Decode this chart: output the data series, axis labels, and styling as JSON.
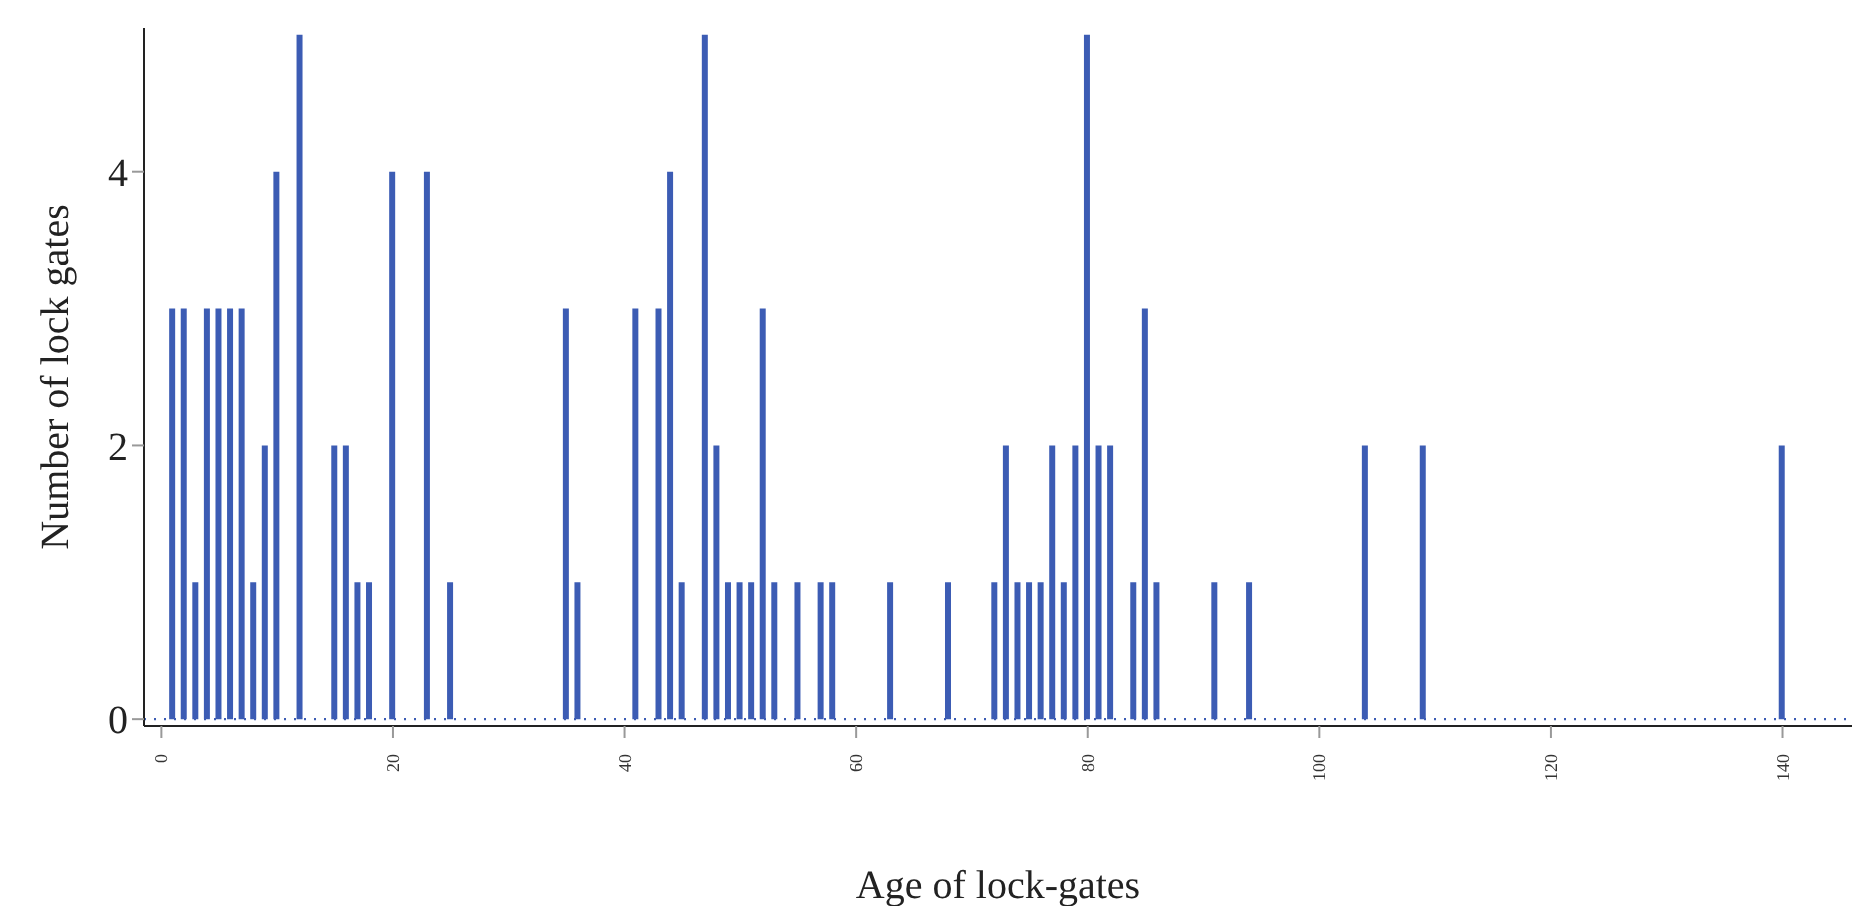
{
  "chart_data": {
    "type": "bar",
    "xlabel": "Age of lock-gates",
    "ylabel": "Number of lock gates",
    "x": [
      1,
      2,
      3,
      4,
      5,
      6,
      7,
      8,
      9,
      10,
      12,
      15,
      16,
      17,
      18,
      20,
      23,
      25,
      35,
      36,
      41,
      43,
      44,
      45,
      47,
      48,
      49,
      50,
      51,
      52,
      53,
      55,
      57,
      58,
      63,
      68,
      72,
      73,
      74,
      75,
      76,
      77,
      78,
      79,
      80,
      81,
      82,
      84,
      85,
      86,
      91,
      94,
      104,
      109,
      140
    ],
    "values": [
      3,
      3,
      1,
      3,
      3,
      3,
      3,
      1,
      2,
      4,
      5,
      2,
      2,
      1,
      1,
      4,
      4,
      1,
      3,
      1,
      3,
      3,
      4,
      1,
      5,
      2,
      1,
      1,
      1,
      3,
      1,
      1,
      1,
      1,
      1,
      1,
      1,
      2,
      1,
      1,
      1,
      2,
      1,
      2,
      5,
      2,
      2,
      1,
      3,
      1,
      1,
      1,
      2,
      2,
      2
    ],
    "color": "#3c5cb4",
    "xlim": [
      -1.5,
      146
    ],
    "xticks": [
      0,
      20,
      40,
      60,
      80,
      100,
      120,
      140
    ],
    "ylim": [
      -0.05,
      5.05
    ],
    "yticks": [
      0,
      2,
      4
    ],
    "ref_lines": [
      {
        "axis": "y",
        "value": 0,
        "line_style": "dotted",
        "color": "#3c5cb4"
      }
    ],
    "grid": false,
    "legend": false
  }
}
